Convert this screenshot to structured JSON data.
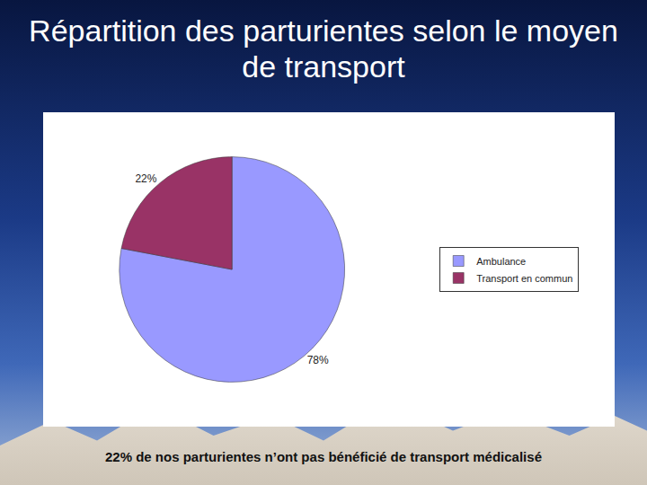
{
  "chart_data": {
    "type": "pie",
    "title": "Répartition des parturientes selon le moyen de transport",
    "categories": [
      "Ambulance",
      "Transport en commun"
    ],
    "values": [
      78,
      22
    ],
    "value_labels": [
      "78%",
      "22%"
    ],
    "colors": [
      "#9999ff",
      "#993366"
    ],
    "data_labels": true,
    "legend": "right",
    "annotations": [
      "22% de nos parturientes n’ont pas bénéficié de transport médicalisé"
    ]
  }
}
